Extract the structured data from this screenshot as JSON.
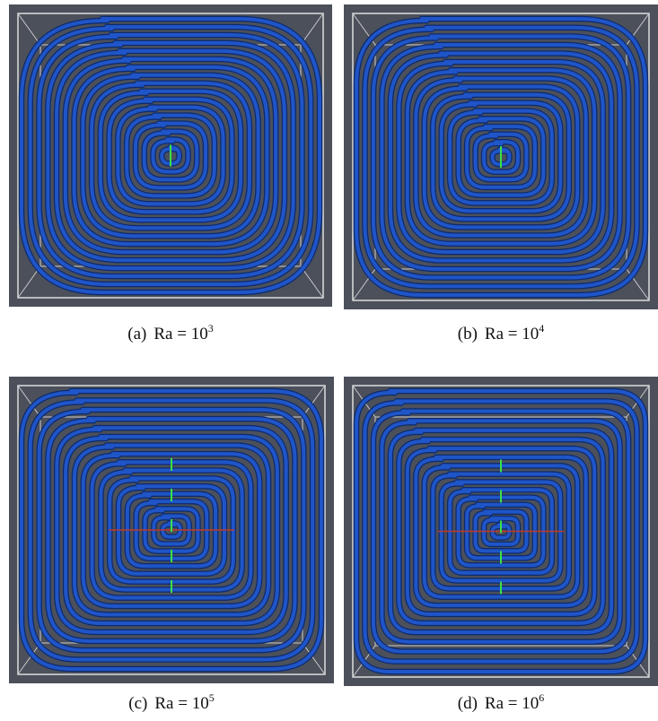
{
  "panels": [
    {
      "label": "(a)",
      "text": "Ra = 10",
      "superscript": "3"
    },
    {
      "label": "(b)",
      "text": "Ra = 10",
      "superscript": "4"
    },
    {
      "label": "(c)",
      "text": "Ra = 10",
      "superscript": "5"
    },
    {
      "label": "(d)",
      "text": "Ra = 10",
      "superscript": "6"
    }
  ]
}
